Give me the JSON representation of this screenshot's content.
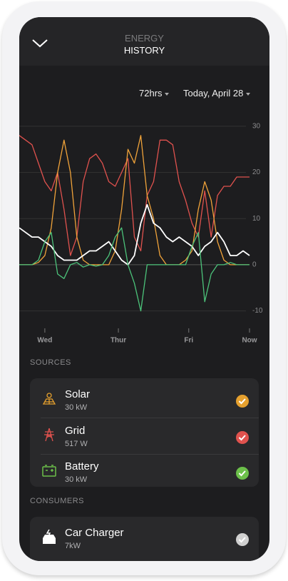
{
  "header": {
    "title": "ENERGY",
    "subtitle": "HISTORY"
  },
  "controls": {
    "range": "72hrs",
    "date": "Today, April 28"
  },
  "chart_data": {
    "type": "line",
    "x": [
      0,
      2,
      4,
      6,
      8,
      10,
      12,
      14,
      16,
      18,
      20,
      22,
      24,
      26,
      28,
      30,
      32,
      34,
      36,
      38,
      40,
      42,
      44,
      46,
      48,
      50,
      52,
      54,
      56,
      58,
      60,
      62,
      64,
      66,
      68,
      70,
      72
    ],
    "series": [
      {
        "color": "#e0524e",
        "values": [
          28,
          27,
          26,
          22,
          18,
          16,
          20,
          12,
          2,
          6,
          18,
          23,
          24,
          22,
          18,
          17,
          20,
          23,
          6,
          3,
          15,
          18,
          27,
          27,
          26,
          18,
          14,
          9,
          6,
          16,
          6,
          15,
          17,
          17,
          19,
          19,
          19
        ]
      },
      {
        "color": "#f0a33a",
        "values": [
          0,
          0,
          0,
          0.5,
          2,
          8,
          20,
          27,
          20,
          6,
          1,
          0,
          0,
          0,
          0,
          3,
          12,
          25,
          22,
          28,
          15,
          10,
          2,
          0,
          0,
          0,
          1,
          3,
          12,
          18,
          14,
          5,
          1,
          0,
          0,
          0,
          0
        ]
      },
      {
        "color": "#ffffff",
        "values": [
          8,
          7,
          6,
          6,
          5,
          4,
          2,
          1,
          1,
          1,
          2,
          3,
          3,
          4,
          5,
          3,
          1,
          0,
          2,
          9,
          13,
          9,
          8,
          6,
          5,
          6,
          5,
          4,
          2,
          4,
          5,
          7,
          5,
          2,
          2,
          3,
          2
        ]
      },
      {
        "color": "#4cc37a",
        "values": [
          0,
          0,
          0,
          1,
          5,
          7,
          -2,
          -3,
          0,
          0.5,
          -0.5,
          0,
          -0.3,
          0,
          2,
          6,
          8,
          0,
          -4,
          -10,
          0,
          0,
          0,
          0,
          0,
          0,
          0,
          4,
          7,
          -8,
          -2,
          0,
          0,
          0.5,
          0,
          0,
          0
        ]
      }
    ],
    "xlim": [
      0,
      72
    ],
    "xticks": [
      {
        "value": 8,
        "label": "Wed"
      },
      {
        "value": 31,
        "label": "Thur"
      },
      {
        "value": 53,
        "label": "Fri"
      },
      {
        "value": 72,
        "label": "Now"
      }
    ],
    "ylim": [
      -13,
      33
    ],
    "yticks": [
      -10,
      0,
      10,
      20,
      30
    ],
    "grid": true
  },
  "sources": {
    "heading": "SOURCES",
    "items": [
      {
        "name": "Solar",
        "value": "30 kW",
        "color": "#e5a02e"
      },
      {
        "name": "Grid",
        "value": "517 W",
        "color": "#e0524e"
      },
      {
        "name": "Battery",
        "value": "30 kW",
        "color": "#6cc04a"
      }
    ]
  },
  "consumers": {
    "heading": "CONSUMERS",
    "items": [
      {
        "name": "Car Charger",
        "value": "7kW",
        "color": "#d0d0d0"
      }
    ]
  }
}
